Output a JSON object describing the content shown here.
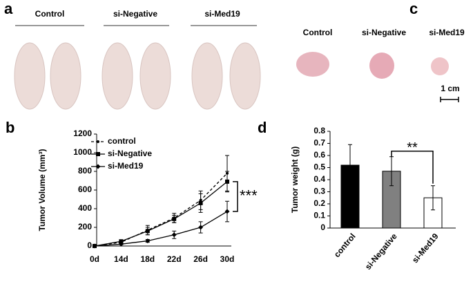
{
  "panel_labels": [
    "a",
    "b",
    "c",
    "d"
  ],
  "photo_a": {
    "groups": [
      "Control",
      "si-Negative",
      "si-Med19"
    ]
  },
  "photo_c": {
    "groups": [
      "Control",
      "si-Negative",
      "si-Med19"
    ],
    "scale_bar": "1 cm"
  },
  "chart_data": [
    {
      "type": "line",
      "y_label": "Tumor Volume (mm³)",
      "categories": [
        "0d",
        "14d",
        "18d",
        "22d",
        "26d",
        "30d"
      ],
      "ylim": [
        0,
        1200
      ],
      "yticks": [
        0,
        200,
        400,
        600,
        800,
        1000,
        1200
      ],
      "legend": "top-left",
      "annotation": "***",
      "series": [
        {
          "name": "control",
          "color": "#000000",
          "line_style": "dashed",
          "marker": "dot",
          "values": [
            0,
            40,
            170,
            300,
            490,
            780
          ],
          "errors": [
            0,
            10,
            50,
            50,
            100,
            190
          ]
        },
        {
          "name": "si-Negative",
          "color": "#000000",
          "line_style": "solid",
          "marker": "square",
          "values": [
            0,
            50,
            160,
            290,
            460,
            690
          ],
          "errors": [
            0,
            10,
            40,
            40,
            100,
            110
          ]
        },
        {
          "name": "si-Med19",
          "color": "#000000",
          "line_style": "solid",
          "marker": "diamond",
          "values": [
            0,
            20,
            55,
            120,
            200,
            370
          ],
          "errors": [
            0,
            5,
            15,
            40,
            60,
            110
          ]
        }
      ]
    },
    {
      "type": "bar",
      "y_label": "Tumor weight (g)",
      "categories": [
        "control",
        "si-Negative",
        "si-Med19"
      ],
      "values": [
        0.52,
        0.47,
        0.25
      ],
      "errors": [
        0.17,
        0.12,
        0.1
      ],
      "colors": [
        "#000000",
        "#808080",
        "#ffffff"
      ],
      "ylim": [
        0,
        0.8
      ],
      "yticks": [
        0,
        0.1,
        0.2,
        0.3,
        0.4,
        0.5,
        0.6,
        0.7,
        0.8
      ],
      "annotation": "**"
    }
  ]
}
